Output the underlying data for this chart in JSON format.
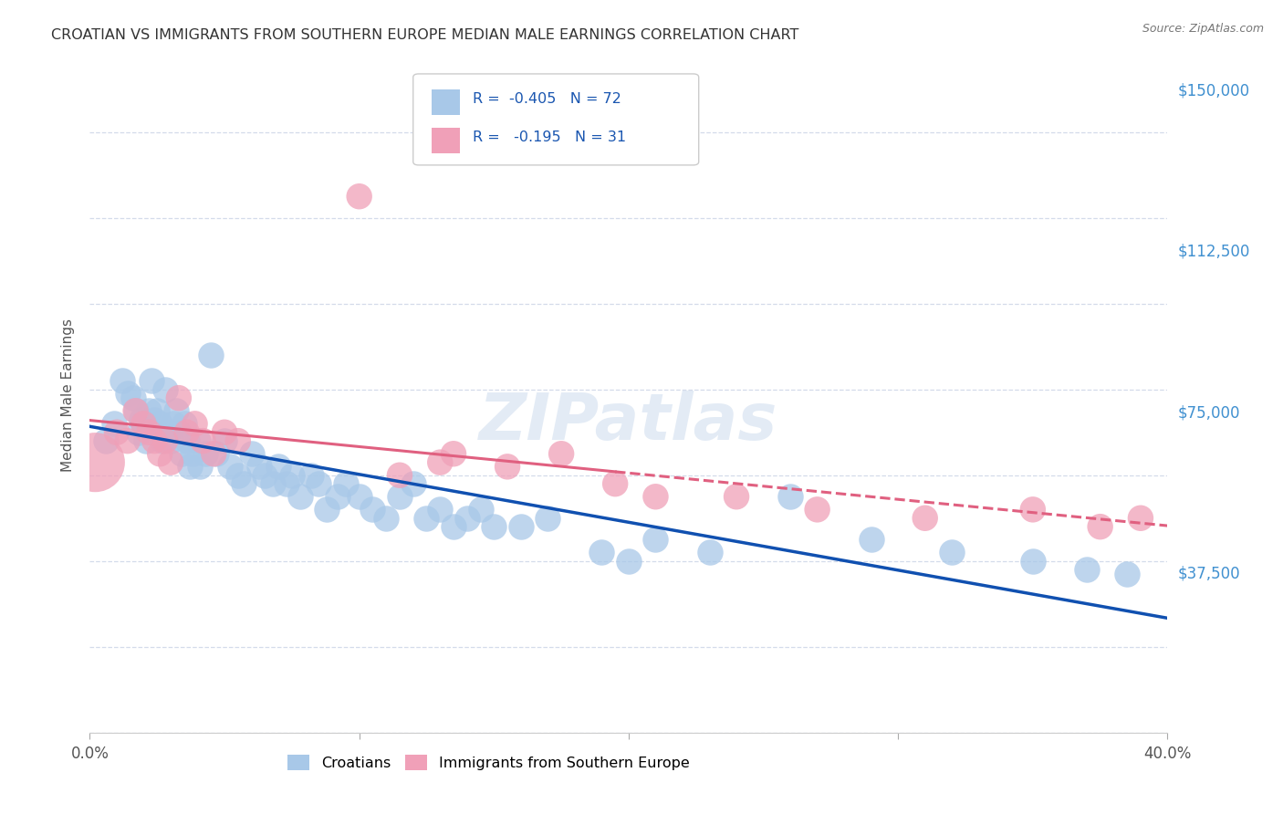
{
  "title": "CROATIAN VS IMMIGRANTS FROM SOUTHERN EUROPE MEDIAN MALE EARNINGS CORRELATION CHART",
  "source": "Source: ZipAtlas.com",
  "ylabel": "Median Male Earnings",
  "watermark": "ZIPatlas",
  "xlim": [
    0.0,
    0.4
  ],
  "ylim": [
    0,
    157500
  ],
  "ytick_values": [
    0,
    37500,
    75000,
    112500,
    150000
  ],
  "ytick_labels": [
    "",
    "$37,500",
    "$75,000",
    "$112,500",
    "$150,000"
  ],
  "xtick_values": [
    0.0,
    0.1,
    0.2,
    0.3,
    0.4
  ],
  "xtick_labels": [
    "0.0%",
    "",
    "",
    "",
    "40.0%"
  ],
  "color_croatian": "#a8c8e8",
  "color_immigrant": "#f0a0b8",
  "color_line_croatian": "#1050b0",
  "color_line_immigrant": "#e06080",
  "background_color": "#ffffff",
  "grid_color": "#d0d8e8",
  "title_color": "#333333",
  "ytick_color": "#4090d0",
  "source_color": "#777777",
  "croatian_x": [
    0.006,
    0.009,
    0.012,
    0.014,
    0.016,
    0.017,
    0.018,
    0.019,
    0.02,
    0.021,
    0.022,
    0.023,
    0.024,
    0.025,
    0.026,
    0.027,
    0.028,
    0.029,
    0.03,
    0.031,
    0.032,
    0.033,
    0.034,
    0.035,
    0.036,
    0.037,
    0.038,
    0.04,
    0.041,
    0.043,
    0.045,
    0.047,
    0.05,
    0.052,
    0.055,
    0.057,
    0.06,
    0.063,
    0.065,
    0.068,
    0.07,
    0.073,
    0.075,
    0.078,
    0.082,
    0.085,
    0.088,
    0.092,
    0.095,
    0.1,
    0.105,
    0.11,
    0.115,
    0.12,
    0.125,
    0.13,
    0.135,
    0.14,
    0.145,
    0.15,
    0.16,
    0.17,
    0.19,
    0.2,
    0.21,
    0.23,
    0.26,
    0.29,
    0.32,
    0.35,
    0.37,
    0.385
  ],
  "croatian_y": [
    68000,
    72000,
    82000,
    79000,
    78000,
    75000,
    70000,
    73000,
    72000,
    68000,
    75000,
    82000,
    73000,
    75000,
    72000,
    68000,
    80000,
    70000,
    68000,
    72000,
    75000,
    70000,
    65000,
    72000,
    68000,
    62000,
    65000,
    68000,
    62000,
    65000,
    88000,
    65000,
    68000,
    62000,
    60000,
    58000,
    65000,
    62000,
    60000,
    58000,
    62000,
    58000,
    60000,
    55000,
    60000,
    58000,
    52000,
    55000,
    58000,
    55000,
    52000,
    50000,
    55000,
    58000,
    50000,
    52000,
    48000,
    50000,
    52000,
    48000,
    48000,
    50000,
    42000,
    40000,
    45000,
    42000,
    55000,
    45000,
    42000,
    40000,
    38000,
    37000
  ],
  "immigrant_x": [
    0.002,
    0.01,
    0.014,
    0.017,
    0.02,
    0.022,
    0.024,
    0.026,
    0.028,
    0.03,
    0.033,
    0.036,
    0.039,
    0.042,
    0.046,
    0.05,
    0.055,
    0.1,
    0.115,
    0.135,
    0.155,
    0.175,
    0.195,
    0.21,
    0.24,
    0.27,
    0.31,
    0.35,
    0.375,
    0.39,
    0.13
  ],
  "immigrant_y": [
    63000,
    70000,
    68000,
    75000,
    72000,
    70000,
    68000,
    65000,
    68000,
    63000,
    78000,
    70000,
    72000,
    68000,
    65000,
    70000,
    68000,
    125000,
    60000,
    65000,
    62000,
    65000,
    58000,
    55000,
    55000,
    52000,
    50000,
    52000,
    48000,
    50000,
    63000
  ],
  "immigrant_large_idx": 0,
  "immigrant_large_size": 2200,
  "scatter_size_croatian": 420,
  "scatter_size_immigrant": 420
}
